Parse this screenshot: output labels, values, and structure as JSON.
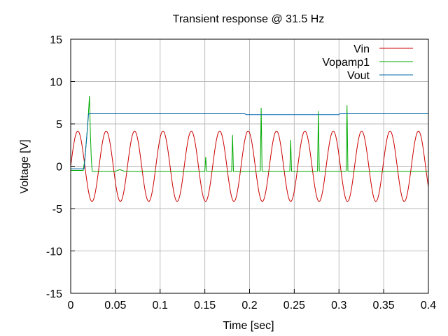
{
  "chart_data": {
    "type": "line",
    "title": "Transient response @ 31.5 Hz",
    "xlabel": "Time [sec]",
    "ylabel": "Voltage [V]",
    "xlim": [
      0,
      0.4
    ],
    "ylim": [
      -15,
      15
    ],
    "grid": true,
    "legend_position": "top-right",
    "x_ticks": [
      0,
      0.05,
      0.1,
      0.15,
      0.2,
      0.25,
      0.3,
      0.35,
      0.4
    ],
    "x_tick_labels": [
      "0",
      "0.05",
      "0.1",
      "0.15",
      "0.2",
      "0.25",
      "0.3",
      "0.35",
      "0.4"
    ],
    "y_ticks": [
      -15,
      -10,
      -5,
      0,
      5,
      10,
      15
    ],
    "y_tick_labels": [
      "-15",
      "-10",
      "-5",
      "0",
      "5",
      "10",
      "15"
    ],
    "series": [
      {
        "name": "Vin",
        "color": "#cc0000",
        "amplitude": 4.15,
        "frequency_hz": 31.5,
        "description_shape": "sine"
      },
      {
        "name": "Vopamp1",
        "color": "#00aa00",
        "baseline": -0.6,
        "points": [
          [
            0.0,
            -0.5
          ],
          [
            0.014,
            -0.5
          ],
          [
            0.016,
            1.0
          ],
          [
            0.018,
            3.5
          ],
          [
            0.02,
            6.5
          ],
          [
            0.021,
            8.3
          ],
          [
            0.022,
            4.0
          ],
          [
            0.023,
            1.0
          ],
          [
            0.024,
            -0.6
          ],
          [
            0.05,
            -0.6
          ],
          [
            0.055,
            -0.4
          ],
          [
            0.06,
            -0.6
          ],
          [
            0.15,
            -0.6
          ],
          [
            0.151,
            1.1
          ],
          [
            0.152,
            -0.6
          ],
          [
            0.18,
            -0.6
          ],
          [
            0.181,
            3.7
          ],
          [
            0.182,
            -0.6
          ],
          [
            0.212,
            -0.6
          ],
          [
            0.213,
            6.9
          ],
          [
            0.214,
            -0.6
          ],
          [
            0.245,
            -0.6
          ],
          [
            0.246,
            3.1
          ],
          [
            0.247,
            -0.6
          ],
          [
            0.276,
            -0.6
          ],
          [
            0.277,
            6.5
          ],
          [
            0.278,
            -0.6
          ],
          [
            0.308,
            -0.6
          ],
          [
            0.309,
            7.2
          ],
          [
            0.31,
            -0.6
          ],
          [
            0.4,
            -0.6
          ]
        ]
      },
      {
        "name": "Vout",
        "color": "#0066aa",
        "points": [
          [
            0.0,
            -0.3
          ],
          [
            0.015,
            -0.3
          ],
          [
            0.02,
            6.2
          ],
          [
            0.195,
            6.2
          ],
          [
            0.196,
            6.1
          ],
          [
            0.3,
            6.1
          ],
          [
            0.301,
            6.2
          ],
          [
            0.4,
            6.2
          ]
        ]
      }
    ]
  }
}
